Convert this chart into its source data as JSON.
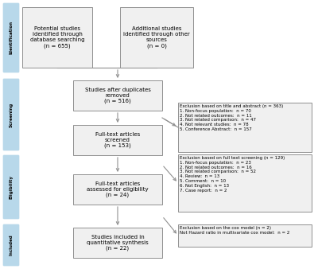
{
  "bg_color": "#ffffff",
  "sidebar_color": "#b8d8ea",
  "box_facecolor": "#f0f0f0",
  "box_edgecolor": "#909090",
  "arrow_color": "#909090",
  "sidebar_labels": [
    "Identification",
    "Screening",
    "Eligibility",
    "Included"
  ],
  "box1_text": "Potential studies\nidentified through\ndatabase searching\n(n = 655)",
  "box2_text": "Additional studies\nidentified through other\nsources\n(n = 0)",
  "box3_text": "Studies after duplicates\nremoved\n(n = 516)",
  "box4_text": "Full-text articles\nscreened\n(n = 153)",
  "box5_text": "Full-text articles\nassessed for eligibility\n(n = 24)",
  "box6_text": "Studies included in\nquantitative synthesis\n(n = 22)",
  "excl1_text": "Exclusion based on title and abstract (n = 363)\n1. Non-focus population:  n = 70\n2. Not related outcomes:  n = 11\n3. Not related comparison:  n = 47\n4. Not relevant studies:  n = 78\n5. Conference Abstract:  n = 157",
  "excl2_text": "Exclusion based on full text screening (n = 129)\n1. Non-focus population:  n = 23\n2. Not related outcomes:  n = 16\n3. Not related comparison:  n = 52\n4. Review:  n = 13\n5. Comment:  n = 10\n6. Not English:  n = 13\n7. Case report:  n = 2",
  "excl3_text": "Exclusion based on the cox model (n = 2)\nNot Hazard ratio in multivariate cox model:  n = 2"
}
